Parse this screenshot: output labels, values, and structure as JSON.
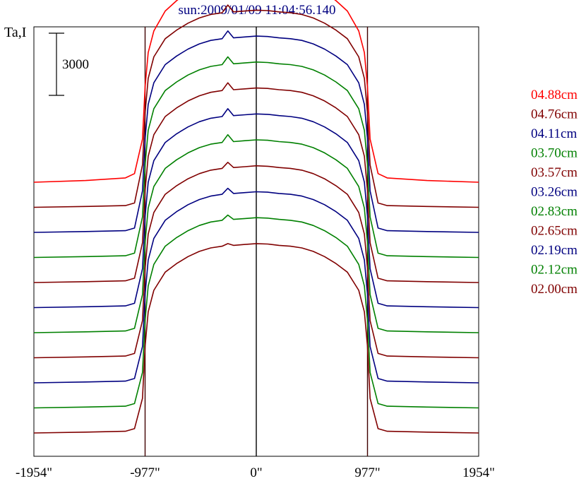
{
  "chart_data": {
    "type": "line",
    "title": "sun:2009/01/09 11:04:56.140",
    "ylabel": "Ta,I",
    "scale_bar_label": "3000",
    "scale_bar_value": 3000,
    "xlim": [
      -1954,
      1954
    ],
    "x_ticks": [
      {
        "value": -1954,
        "label": "-1954\""
      },
      {
        "value": -977,
        "label": "-977\""
      },
      {
        "value": 0,
        "label": "0\""
      },
      {
        "value": 977,
        "label": "977\""
      },
      {
        "value": 1954,
        "label": "1954\""
      }
    ],
    "vertical_reference_lines": [
      -977,
      0,
      977
    ],
    "legend_placement": "right",
    "offset_per_series": 2900,
    "x": [
      -1954,
      -1500,
      -1150,
      -1070,
      -1000,
      -977,
      -950,
      -900,
      -800,
      -700,
      -600,
      -500,
      -400,
      -300,
      -250,
      -200,
      -100,
      0,
      100,
      200,
      300,
      400,
      500,
      600,
      700,
      800,
      900,
      950,
      977,
      1000,
      1070,
      1150,
      1500,
      1954
    ],
    "series": [
      {
        "name": "04.88cm",
        "color": "#ff0000",
        "baseline": 29000,
        "values": [
          29000,
          29200,
          29500,
          30000,
          34000,
          40000,
          44000,
          46500,
          48800,
          50000,
          51000,
          52000,
          52500,
          52800,
          53800,
          52900,
          53100,
          53200,
          53150,
          53000,
          52900,
          52500,
          52000,
          51000,
          50000,
          48800,
          46500,
          44000,
          40000,
          34000,
          30000,
          29500,
          29200,
          29000
        ]
      },
      {
        "name": "04.76cm",
        "color": "#800000",
        "baseline": 26100,
        "values": [
          26100,
          26200,
          26300,
          26600,
          31000,
          37000,
          41000,
          43500,
          45600,
          46600,
          47400,
          48000,
          48400,
          48600,
          49500,
          48700,
          48800,
          48900,
          48850,
          48700,
          48600,
          48400,
          48000,
          47400,
          46600,
          45600,
          43500,
          41000,
          37000,
          31000,
          26600,
          26300,
          26200,
          26100
        ]
      },
      {
        "name": "04.11cm",
        "color": "#000080",
        "baseline": 23200,
        "values": [
          23200,
          23300,
          23400,
          23700,
          28000,
          34000,
          38000,
          40500,
          42600,
          43600,
          44400,
          45000,
          45400,
          45600,
          46500,
          45700,
          45800,
          45900,
          45850,
          45700,
          45600,
          45400,
          45000,
          44400,
          43600,
          42600,
          40500,
          38000,
          34000,
          28000,
          23700,
          23400,
          23300,
          23200
        ]
      },
      {
        "name": "03.70cm",
        "color": "#008000",
        "baseline": 20300,
        "values": [
          20300,
          20400,
          20500,
          20800,
          25000,
          31000,
          35000,
          37500,
          39600,
          40600,
          41400,
          42000,
          42400,
          42600,
          43500,
          42700,
          42800,
          42900,
          42850,
          42700,
          42600,
          42400,
          42000,
          41400,
          40600,
          39600,
          37500,
          35000,
          31000,
          25000,
          20800,
          20500,
          20400,
          20300
        ]
      },
      {
        "name": "03.57cm",
        "color": "#800000",
        "baseline": 17400,
        "values": [
          17400,
          17500,
          17600,
          17900,
          22000,
          28000,
          32000,
          34500,
          36600,
          37600,
          38400,
          39000,
          39400,
          39600,
          40500,
          39700,
          39800,
          39900,
          39850,
          39700,
          39600,
          39400,
          39000,
          38400,
          37600,
          36600,
          34500,
          32000,
          28000,
          22000,
          17900,
          17600,
          17500,
          17400
        ]
      },
      {
        "name": "03.26cm",
        "color": "#000080",
        "baseline": 14500,
        "values": [
          14500,
          14600,
          14700,
          15000,
          19000,
          25000,
          29000,
          31500,
          33600,
          34600,
          35400,
          36000,
          36400,
          36600,
          37500,
          36700,
          36800,
          36900,
          36850,
          36700,
          36600,
          36400,
          36000,
          35400,
          34600,
          33600,
          31500,
          29000,
          25000,
          19000,
          15000,
          14700,
          14600,
          14500
        ]
      },
      {
        "name": "02.83cm",
        "color": "#008000",
        "baseline": 11600,
        "values": [
          11600,
          11700,
          11800,
          12100,
          16000,
          22000,
          26000,
          28500,
          30600,
          31600,
          32400,
          33000,
          33400,
          33600,
          34500,
          33700,
          33800,
          33900,
          33850,
          33700,
          33600,
          33400,
          33000,
          32400,
          31600,
          30600,
          28500,
          26000,
          22000,
          16000,
          12100,
          11800,
          11700,
          11600
        ]
      },
      {
        "name": "02.65cm",
        "color": "#800000",
        "baseline": 8700,
        "values": [
          8700,
          8800,
          8900,
          9200,
          13000,
          19000,
          23000,
          25500,
          27600,
          28600,
          29400,
          30000,
          30400,
          30600,
          31300,
          30700,
          30800,
          30900,
          30850,
          30700,
          30600,
          30400,
          30000,
          29400,
          28600,
          27600,
          25500,
          23000,
          19000,
          13000,
          9200,
          8900,
          8800,
          8700
        ]
      },
      {
        "name": "02.19cm",
        "color": "#000080",
        "baseline": 5800,
        "values": [
          5800,
          5900,
          6000,
          6300,
          10000,
          16000,
          20000,
          22500,
          24600,
          25600,
          26400,
          27000,
          27400,
          27600,
          28300,
          27700,
          27800,
          27900,
          27850,
          27700,
          27600,
          27400,
          27000,
          26400,
          25600,
          24600,
          22500,
          20000,
          16000,
          10000,
          6300,
          6000,
          5900,
          5800
        ]
      },
      {
        "name": "02.12cm",
        "color": "#008000",
        "baseline": 2900,
        "values": [
          2900,
          3000,
          3100,
          3400,
          7000,
          13000,
          17000,
          19500,
          21600,
          22600,
          23400,
          24000,
          24400,
          24600,
          25200,
          24700,
          24800,
          24900,
          24850,
          24700,
          24600,
          24400,
          24000,
          23400,
          22600,
          21600,
          19500,
          17000,
          13000,
          7000,
          3400,
          3100,
          3000,
          2900
        ]
      },
      {
        "name": "02.00cm",
        "color": "#800000",
        "baseline": 0,
        "values": [
          0,
          100,
          200,
          500,
          4000,
          10000,
          14000,
          16500,
          18600,
          19600,
          20400,
          21000,
          21400,
          21600,
          21900,
          21700,
          21800,
          21900,
          21850,
          21700,
          21600,
          21400,
          21000,
          20400,
          19600,
          18600,
          16500,
          14000,
          10000,
          4000,
          500,
          200,
          100,
          0
        ]
      }
    ]
  }
}
